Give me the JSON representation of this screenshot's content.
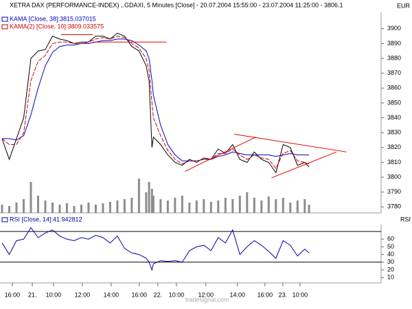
{
  "chart_data": [
    {
      "type": "line",
      "title": "XETRA DAX (PERFORMANCE-INDEX) ,.GDAXI, 5 Minutes [Close] - 20.07.2004 15:55:00 - 23.07.2004 11:25:00 - 3806.1",
      "currency": "EUR",
      "x": [
        0,
        0.5,
        1,
        1.5,
        2,
        2.5,
        3,
        3.5,
        4,
        4.5,
        5,
        5.5,
        6,
        6.5,
        7,
        7.5,
        8,
        8.5,
        9,
        9.5,
        10,
        10.2,
        10.4,
        10.5,
        11,
        11.5,
        12,
        12.5,
        13,
        13.5,
        14,
        14.5,
        15,
        15.5,
        16,
        16.5,
        17,
        17.5,
        18,
        18.5,
        19,
        19.5,
        20,
        20.5,
        21,
        21.3
      ],
      "xlim": [
        0,
        26.3
      ],
      "ylim": [
        3776,
        3911
      ],
      "yticks": [
        3780,
        3790,
        3800,
        3810,
        3820,
        3830,
        3840,
        3850,
        3860,
        3870,
        3880,
        3890,
        3900
      ],
      "series": [
        {
          "color": "#000000",
          "values": [
            3826,
            3812,
            3826,
            3840,
            3880,
            3885,
            3886,
            3895,
            3893,
            3892,
            3890,
            3891,
            3891,
            3895,
            3895,
            3893,
            3897,
            3895,
            3888,
            3885,
            3875,
            3865,
            3820,
            3827,
            3822,
            3815,
            3810,
            3808,
            3812,
            3810,
            3813,
            3812,
            3819,
            3816,
            3822,
            3812,
            3810,
            3817,
            3812,
            3810,
            3803,
            3822,
            3820,
            3808,
            3810,
            3807
          ]
        },
        {
          "name": "KAMA [Close, 38]:3815.037015",
          "color": "#0000cc",
          "values": [
            3826,
            3826,
            3825,
            3828,
            3842,
            3860,
            3875,
            3884,
            3888,
            3889,
            3889,
            3890,
            3890,
            3891,
            3892,
            3892,
            3893,
            3893,
            3892,
            3889,
            3885,
            3880,
            3865,
            3855,
            3835,
            3822,
            3815,
            3811,
            3811,
            3811,
            3812,
            3812,
            3814,
            3815,
            3817,
            3816,
            3815,
            3815,
            3815,
            3815,
            3814,
            3815,
            3816,
            3815,
            3815,
            3815
          ]
        },
        {
          "name": "KAMA(2) [Close, 10]:3809.033575",
          "color": "#cc0000",
          "dashed": true,
          "values": [
            3826,
            3822,
            3822,
            3830,
            3865,
            3878,
            3882,
            3890,
            3891,
            3891,
            3890,
            3890,
            3891,
            3893,
            3894,
            3893,
            3895,
            3894,
            3890,
            3887,
            3880,
            3872,
            3850,
            3840,
            3828,
            3818,
            3812,
            3809,
            3811,
            3811,
            3812,
            3812,
            3816,
            3816,
            3819,
            3815,
            3812,
            3815,
            3813,
            3812,
            3806,
            3816,
            3818,
            3811,
            3810,
            3809
          ]
        }
      ],
      "volume": {
        "color": "#8c8c8c",
        "values": [
          12,
          10,
          15,
          20,
          45,
          25,
          18,
          15,
          12,
          14,
          10,
          12,
          15,
          12,
          14,
          16,
          18,
          20,
          22,
          50,
          30,
          45,
          35,
          25,
          20,
          18,
          22,
          25,
          15,
          18,
          20,
          16,
          18,
          22,
          20,
          25,
          30,
          22,
          18,
          24,
          20,
          22,
          15,
          18,
          20,
          12
        ]
      },
      "trendlines": {
        "color": "#e00000",
        "lines": [
          {
            "x": [
              4.1,
              6.3
            ],
            "y": [
              3896,
              3896
            ]
          },
          {
            "x": [
              6.3,
              11.4
            ],
            "y": [
              3891,
              3891
            ]
          },
          {
            "x": [
              12.7,
              17.6
            ],
            "y": [
              3804,
              3827
            ]
          },
          {
            "x": [
              16.1,
              23.9
            ],
            "y": [
              3829,
              3817
            ]
          },
          {
            "x": [
              18.7,
              23.2
            ],
            "y": [
              3799.6,
              3817
            ]
          }
        ]
      }
    },
    {
      "type": "line",
      "ylabel": "RSI",
      "x": [
        0,
        0.5,
        1,
        1.5,
        2,
        2.5,
        3,
        3.5,
        4,
        4.5,
        5,
        5.5,
        6,
        6.5,
        7,
        7.5,
        8,
        8.5,
        9,
        9.5,
        10,
        10.2,
        10.4,
        10.5,
        11,
        11.5,
        12,
        12.5,
        13,
        13.5,
        14,
        14.5,
        15,
        15.5,
        16,
        16.5,
        17,
        17.5,
        18,
        18.5,
        19,
        19.5,
        20,
        20.5,
        21,
        21.3
      ],
      "xlim": [
        0,
        26.3
      ],
      "ylim": [
        3,
        79
      ],
      "yticks": [
        10,
        20,
        30,
        40,
        50,
        60
      ],
      "hlines": [
        30,
        70
      ],
      "series": [
        {
          "name": "RSI [Close, 14]:41.942812",
          "color": "#0000aa",
          "values": [
            55,
            40,
            58,
            60,
            75,
            62,
            68,
            72,
            64,
            60,
            58,
            62,
            60,
            65,
            62,
            55,
            64,
            48,
            42,
            40,
            35,
            30,
            20,
            28,
            32,
            31,
            32,
            30,
            45,
            50,
            52,
            45,
            62,
            55,
            72,
            40,
            50,
            58,
            52,
            44,
            35,
            58,
            52,
            38,
            47,
            42
          ]
        }
      ],
      "xticks": [
        {
          "value": 0.71,
          "label": "16:00"
        },
        {
          "value": 2.1,
          "label": "21."
        },
        {
          "value": 3.57,
          "label": "10:00"
        },
        {
          "value": 5.57,
          "label": "12:00"
        },
        {
          "value": 7.57,
          "label": "14:00"
        },
        {
          "value": 9.52,
          "label": "16:00"
        },
        {
          "value": 10.81,
          "label": "22."
        },
        {
          "value": 12.1,
          "label": "10:00"
        },
        {
          "value": 14.14,
          "label": "12:00"
        },
        {
          "value": 16.33,
          "label": "14:00"
        },
        {
          "value": 18.24,
          "label": "16:00"
        },
        {
          "value": 19.48,
          "label": "23."
        },
        {
          "value": 20.67,
          "label": "10:00"
        }
      ],
      "watermark": "tradesignal.com"
    }
  ]
}
